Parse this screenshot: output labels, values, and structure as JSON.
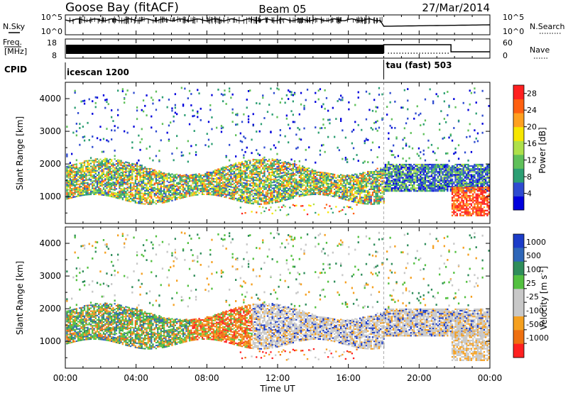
{
  "header": {
    "station": "Goose Bay (fitACF)",
    "beam": "Beam 05",
    "date": "27/Mar/2014"
  },
  "status_panels": {
    "nsky": {
      "label": "N.Sky",
      "ticks": [
        "10^5",
        "10^0"
      ]
    },
    "nsearch": {
      "label": "N.Search",
      "ticks": [
        "10^5",
        "10^0"
      ]
    },
    "freq": {
      "label_lines": [
        "Freq.",
        "[MHz]"
      ],
      "ticks": [
        "18",
        "8"
      ]
    },
    "nave": {
      "label": "Nave",
      "ticks": [
        "60",
        "0"
      ]
    },
    "cpid": {
      "label": "CPID",
      "segments": [
        {
          "name": "icescan 1200",
          "start_hour": 0
        },
        {
          "name": "tau (fast) 503",
          "start_hour": 18
        }
      ]
    }
  },
  "chart_data": [
    {
      "type": "heatmap",
      "panel": "power",
      "xlabel": "",
      "ylabel": "Slant Range [km]",
      "xlim": [
        0,
        24
      ],
      "ylim": [
        180,
        4500
      ],
      "yticks": [
        1000,
        2000,
        3000,
        4000
      ],
      "xticks": [
        0,
        4,
        8,
        12,
        16,
        20,
        24
      ],
      "colorbar": {
        "label": "Power [dB]",
        "tick_labels": [
          "4",
          "8",
          "12",
          "16",
          "20",
          "24",
          "28"
        ],
        "tick_values": [
          4,
          8,
          12,
          16,
          20,
          24,
          28
        ],
        "range": [
          0,
          30
        ],
        "colors": [
          "#0000dd",
          "#2e4bd0",
          "#2c9e73",
          "#5fc05a",
          "#aee04a",
          "#f7e600",
          "#ffa020",
          "#ff6010",
          "#ff2020"
        ]
      }
    },
    {
      "type": "heatmap",
      "panel": "velocity",
      "xlabel": "Time UT",
      "ylabel": "Slant Range [km]",
      "xlim": [
        0,
        24
      ],
      "ylim": [
        180,
        4500
      ],
      "yticks": [
        1000,
        2000,
        3000,
        4000
      ],
      "xticks": [
        0,
        4,
        8,
        12,
        16,
        20,
        24
      ],
      "xtick_labels": [
        "00:00",
        "04:00",
        "08:00",
        "12:00",
        "16:00",
        "20:00",
        "00:00"
      ],
      "colorbar": {
        "label": "Velocity [m s^-1]",
        "tick_labels": [
          "1000",
          "500",
          "100",
          "25",
          "-25",
          "-100",
          "-500",
          "-1000"
        ],
        "colors": [
          "#1c3cc8",
          "#2e66b8",
          "#2f8d5a",
          "#53c040",
          "#c8c8c8",
          "#c8c8c8",
          "#f5a020",
          "#ee7010",
          "#ff2020"
        ]
      }
    }
  ]
}
